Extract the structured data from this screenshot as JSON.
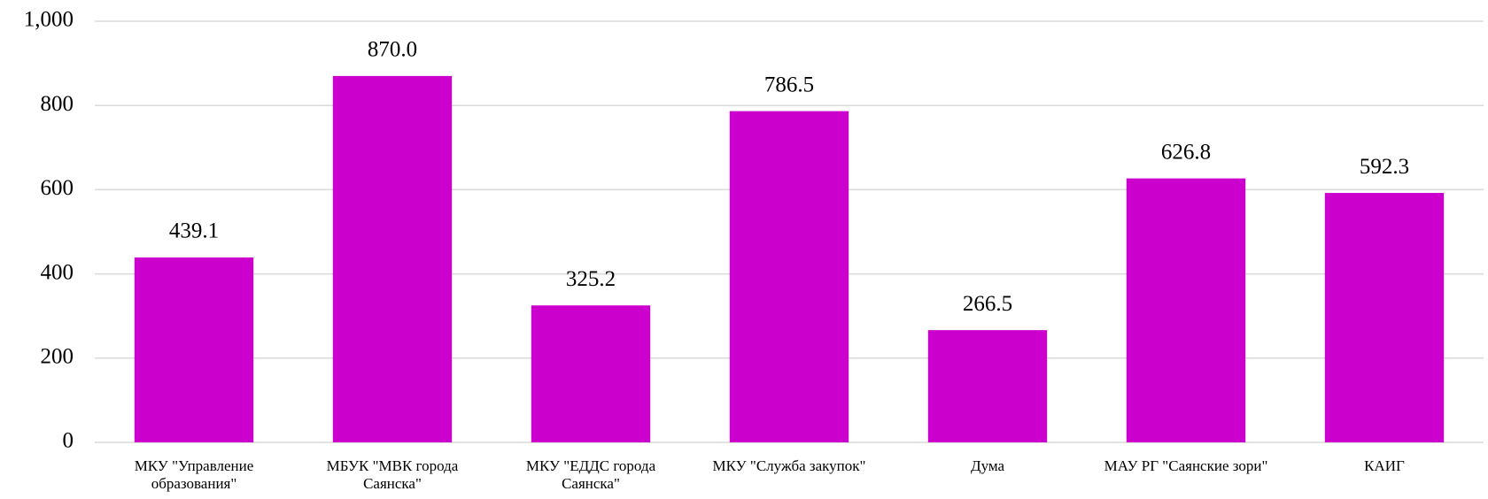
{
  "chart_data": {
    "type": "bar",
    "categories": [
      "МКУ \"Управление образования\"",
      "МБУК \"МВК города Саянска\"",
      "МКУ \"ЕДДС города Саянска\"",
      "МКУ \"Служба закупок\"",
      "Дума",
      "МАУ РГ \"Саянские зори\"",
      "КАИГ"
    ],
    "values": [
      439.1,
      870,
      325.2,
      786.5,
      266.5,
      626.8,
      592.3
    ],
    "value_labels": [
      "439.1",
      "870.0",
      "325.2",
      "786.5",
      "266.5",
      "626.8",
      "592.3"
    ],
    "color": "#cc00cc",
    "ylim": [
      0,
      1000
    ],
    "yticks": [
      0,
      200,
      400,
      600,
      800,
      {
        "value": 1000,
        "label": "1,000"
      }
    ],
    "grid": true
  }
}
